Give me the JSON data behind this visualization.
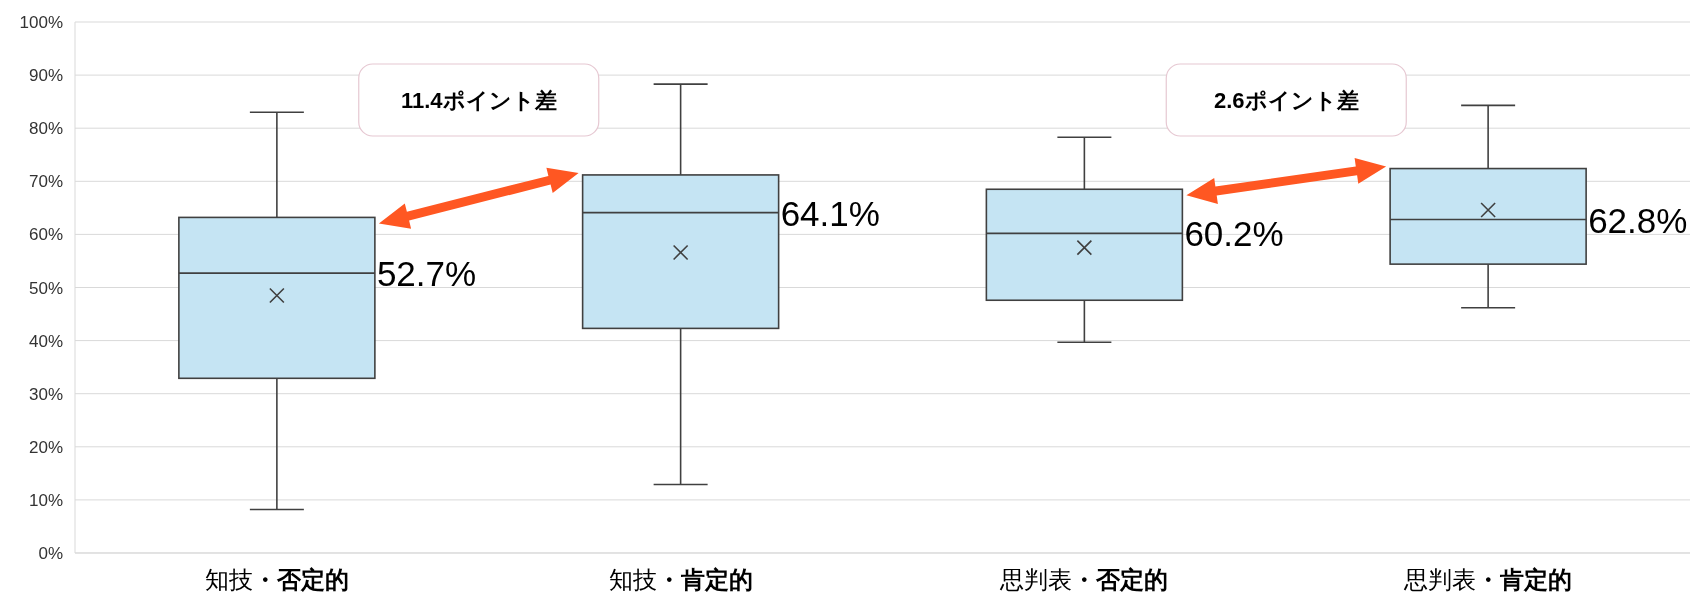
{
  "chart_data": {
    "type": "box",
    "categories": [
      "知技・否定的",
      "知技・肯定的",
      "思判表・否定的",
      "思判表・肯定的"
    ],
    "color": "#c5e4f3",
    "boxes": [
      {
        "low": 8.2,
        "q1": 32.9,
        "median": 52.7,
        "q3": 63.2,
        "high": 83.0,
        "mean": 48.5
      },
      {
        "low": 12.9,
        "q1": 42.3,
        "median": 64.1,
        "q3": 71.2,
        "high": 88.3,
        "mean": 56.6
      },
      {
        "low": 39.7,
        "q1": 47.6,
        "median": 60.2,
        "q3": 68.5,
        "high": 78.3,
        "mean": 57.5
      },
      {
        "low": 46.2,
        "q1": 54.4,
        "median": 62.8,
        "q3": 72.4,
        "high": 84.3,
        "mean": 64.6
      }
    ],
    "value_labels": [
      "52.7%",
      "64.1%",
      "60.2%",
      "62.8%"
    ],
    "annotations": [
      "11.4ポイント差",
      "2.6ポイント差"
    ],
    "ylim": [
      0,
      100
    ],
    "yticks": [
      {
        "value": 0,
        "label": "0%"
      },
      {
        "value": 10,
        "label": "10%"
      },
      {
        "value": 20,
        "label": "20%"
      },
      {
        "value": 30,
        "label": "30%"
      },
      {
        "value": 40,
        "label": "40%"
      },
      {
        "value": 50,
        "label": "50%"
      },
      {
        "value": 60,
        "label": "60%"
      },
      {
        "value": 70,
        "label": "70%"
      },
      {
        "value": 80,
        "label": "80%"
      },
      {
        "value": 90,
        "label": "90%"
      },
      {
        "value": 100,
        "label": "100%"
      }
    ],
    "grid": "y"
  }
}
